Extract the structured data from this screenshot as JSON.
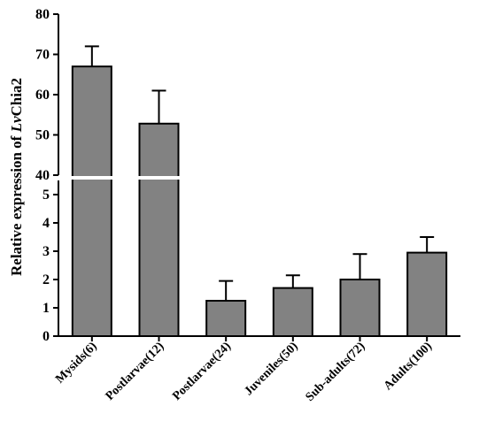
{
  "chart_data": {
    "type": "bar",
    "categories": [
      "Mysids(6)",
      "Postlarvae(12)",
      "Postlarvae(24)",
      "Juveniles(50)",
      "Sub-adults(72)",
      "Adults(100)"
    ],
    "values": [
      67.0,
      52.8,
      1.25,
      1.7,
      2.0,
      2.95
    ],
    "errors": [
      5.0,
      8.2,
      0.7,
      0.45,
      0.9,
      0.55
    ],
    "ylabel_prefix": "Relative expression of ",
    "ylabel_italic": "Lv",
    "ylabel_suffix": "Chia2",
    "y_axis_break": true,
    "ylim_lower": [
      0,
      5.5
    ],
    "ylim_upper": [
      40,
      80
    ],
    "yticks_lower": [
      "0",
      "1",
      "2",
      "3",
      "4",
      "5"
    ],
    "yticks_upper": [
      "40",
      "50",
      "60",
      "70",
      "80"
    ],
    "bar_color": "#828282",
    "grid": false
  }
}
